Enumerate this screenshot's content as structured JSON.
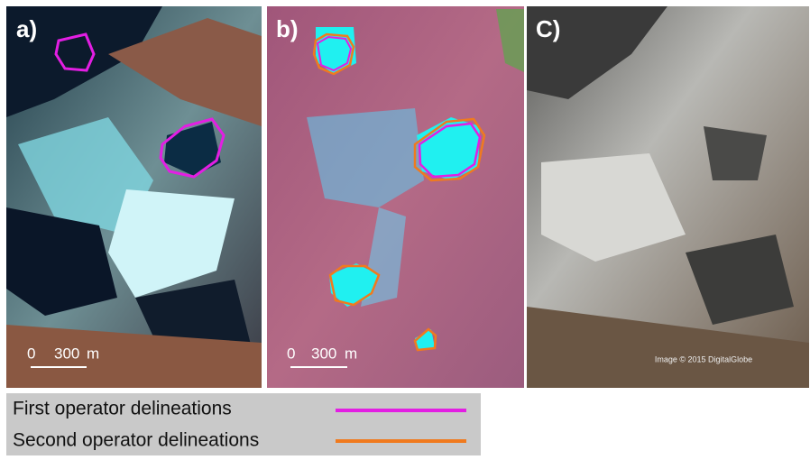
{
  "panels": [
    {
      "label": "a)",
      "scale_bar": {
        "zero": "0",
        "length": "300",
        "unit": "m"
      }
    },
    {
      "label": "b)",
      "scale_bar": {
        "zero": "0",
        "length": "300",
        "unit": "m"
      }
    },
    {
      "label": "C)",
      "credit": "Image © 2015 DigitalGlobe"
    }
  ],
  "legend": [
    {
      "label": "First operator delineations",
      "color": "#e31ee3"
    },
    {
      "label": "Second operator delineations",
      "color": "#f07a1e"
    }
  ]
}
